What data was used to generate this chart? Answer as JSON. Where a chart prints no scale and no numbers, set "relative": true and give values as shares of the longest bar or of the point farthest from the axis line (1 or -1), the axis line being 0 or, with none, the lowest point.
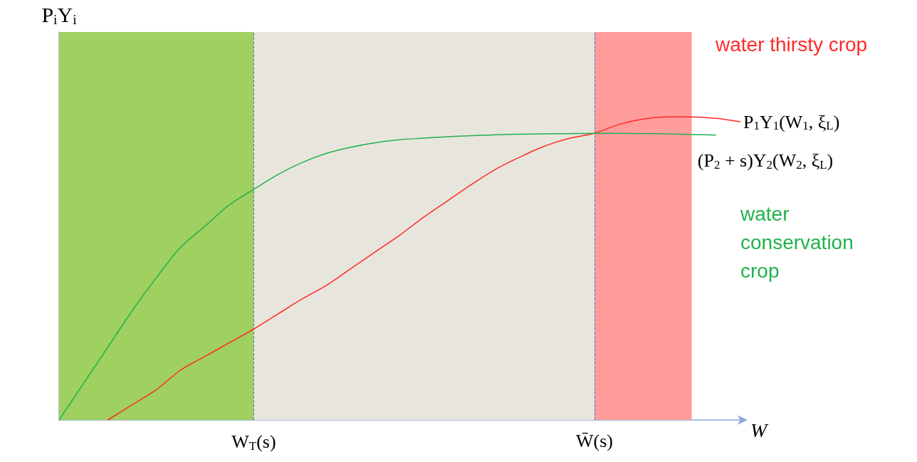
{
  "chart_data": {
    "type": "line",
    "relative": true,
    "ylabel": "P$_{i}$Y$_{i}$",
    "xlabel": "W",
    "categories": [
      null,
      null,
      null,
      null,
      null,
      null,
      null,
      null,
      "W$_{T}$(s)",
      null,
      null,
      null,
      null,
      null,
      null,
      null,
      null,
      null,
      null,
      null,
      null,
      null,
      "W̄(s)",
      null,
      null,
      null,
      null,
      null,
      null
    ],
    "series": [
      {
        "name": "P$_{1}$Y$_{1}$(W$_{1}$, ξ$_{L}$)",
        "color": "#ff2a2a",
        "values": [
          null,
          null,
          0,
          0.05,
          0.1,
          0.165,
          0.21,
          0.255,
          0.3,
          0.35,
          0.4,
          0.445,
          0.5,
          0.555,
          0.61,
          0.67,
          0.725,
          0.78,
          0.83,
          0.87,
          0.905,
          0.93,
          0.946,
          0.975,
          0.993,
          1.0,
          1.0,
          0.995,
          0.984
        ]
      },
      {
        "name": "(P$_{2}$ + s)Y$_{2}$(W$_{2}$, ξ$_{L}$)",
        "color": "#22b14c",
        "values": [
          0,
          0.12,
          0.24,
          0.36,
          0.47,
          0.57,
          0.64,
          0.71,
          0.761,
          0.81,
          0.85,
          0.88,
          0.9,
          0.915,
          0.925,
          0.93,
          0.935,
          0.938,
          0.941,
          0.943,
          0.944,
          0.945,
          0.946,
          0.946,
          0.945,
          0.944,
          0.942,
          0.94,
          null
        ]
      }
    ],
    "bands": [
      {
        "axis": "x",
        "from": "W$_{T}$(s)",
        "to": "W̄(s)",
        "color": "#e8e6dc"
      }
    ],
    "ref_lines": [
      {
        "axis": "x",
        "value": "W$_{T}$(s)",
        "line_style": "dashed"
      },
      {
        "axis": "x",
        "value": "W̄(s)",
        "line_style": "dashed"
      }
    ],
    "annotations": [
      "water thirsty crop",
      "water conservation crop"
    ],
    "legend": false,
    "grid": false,
    "marker": "none"
  }
}
